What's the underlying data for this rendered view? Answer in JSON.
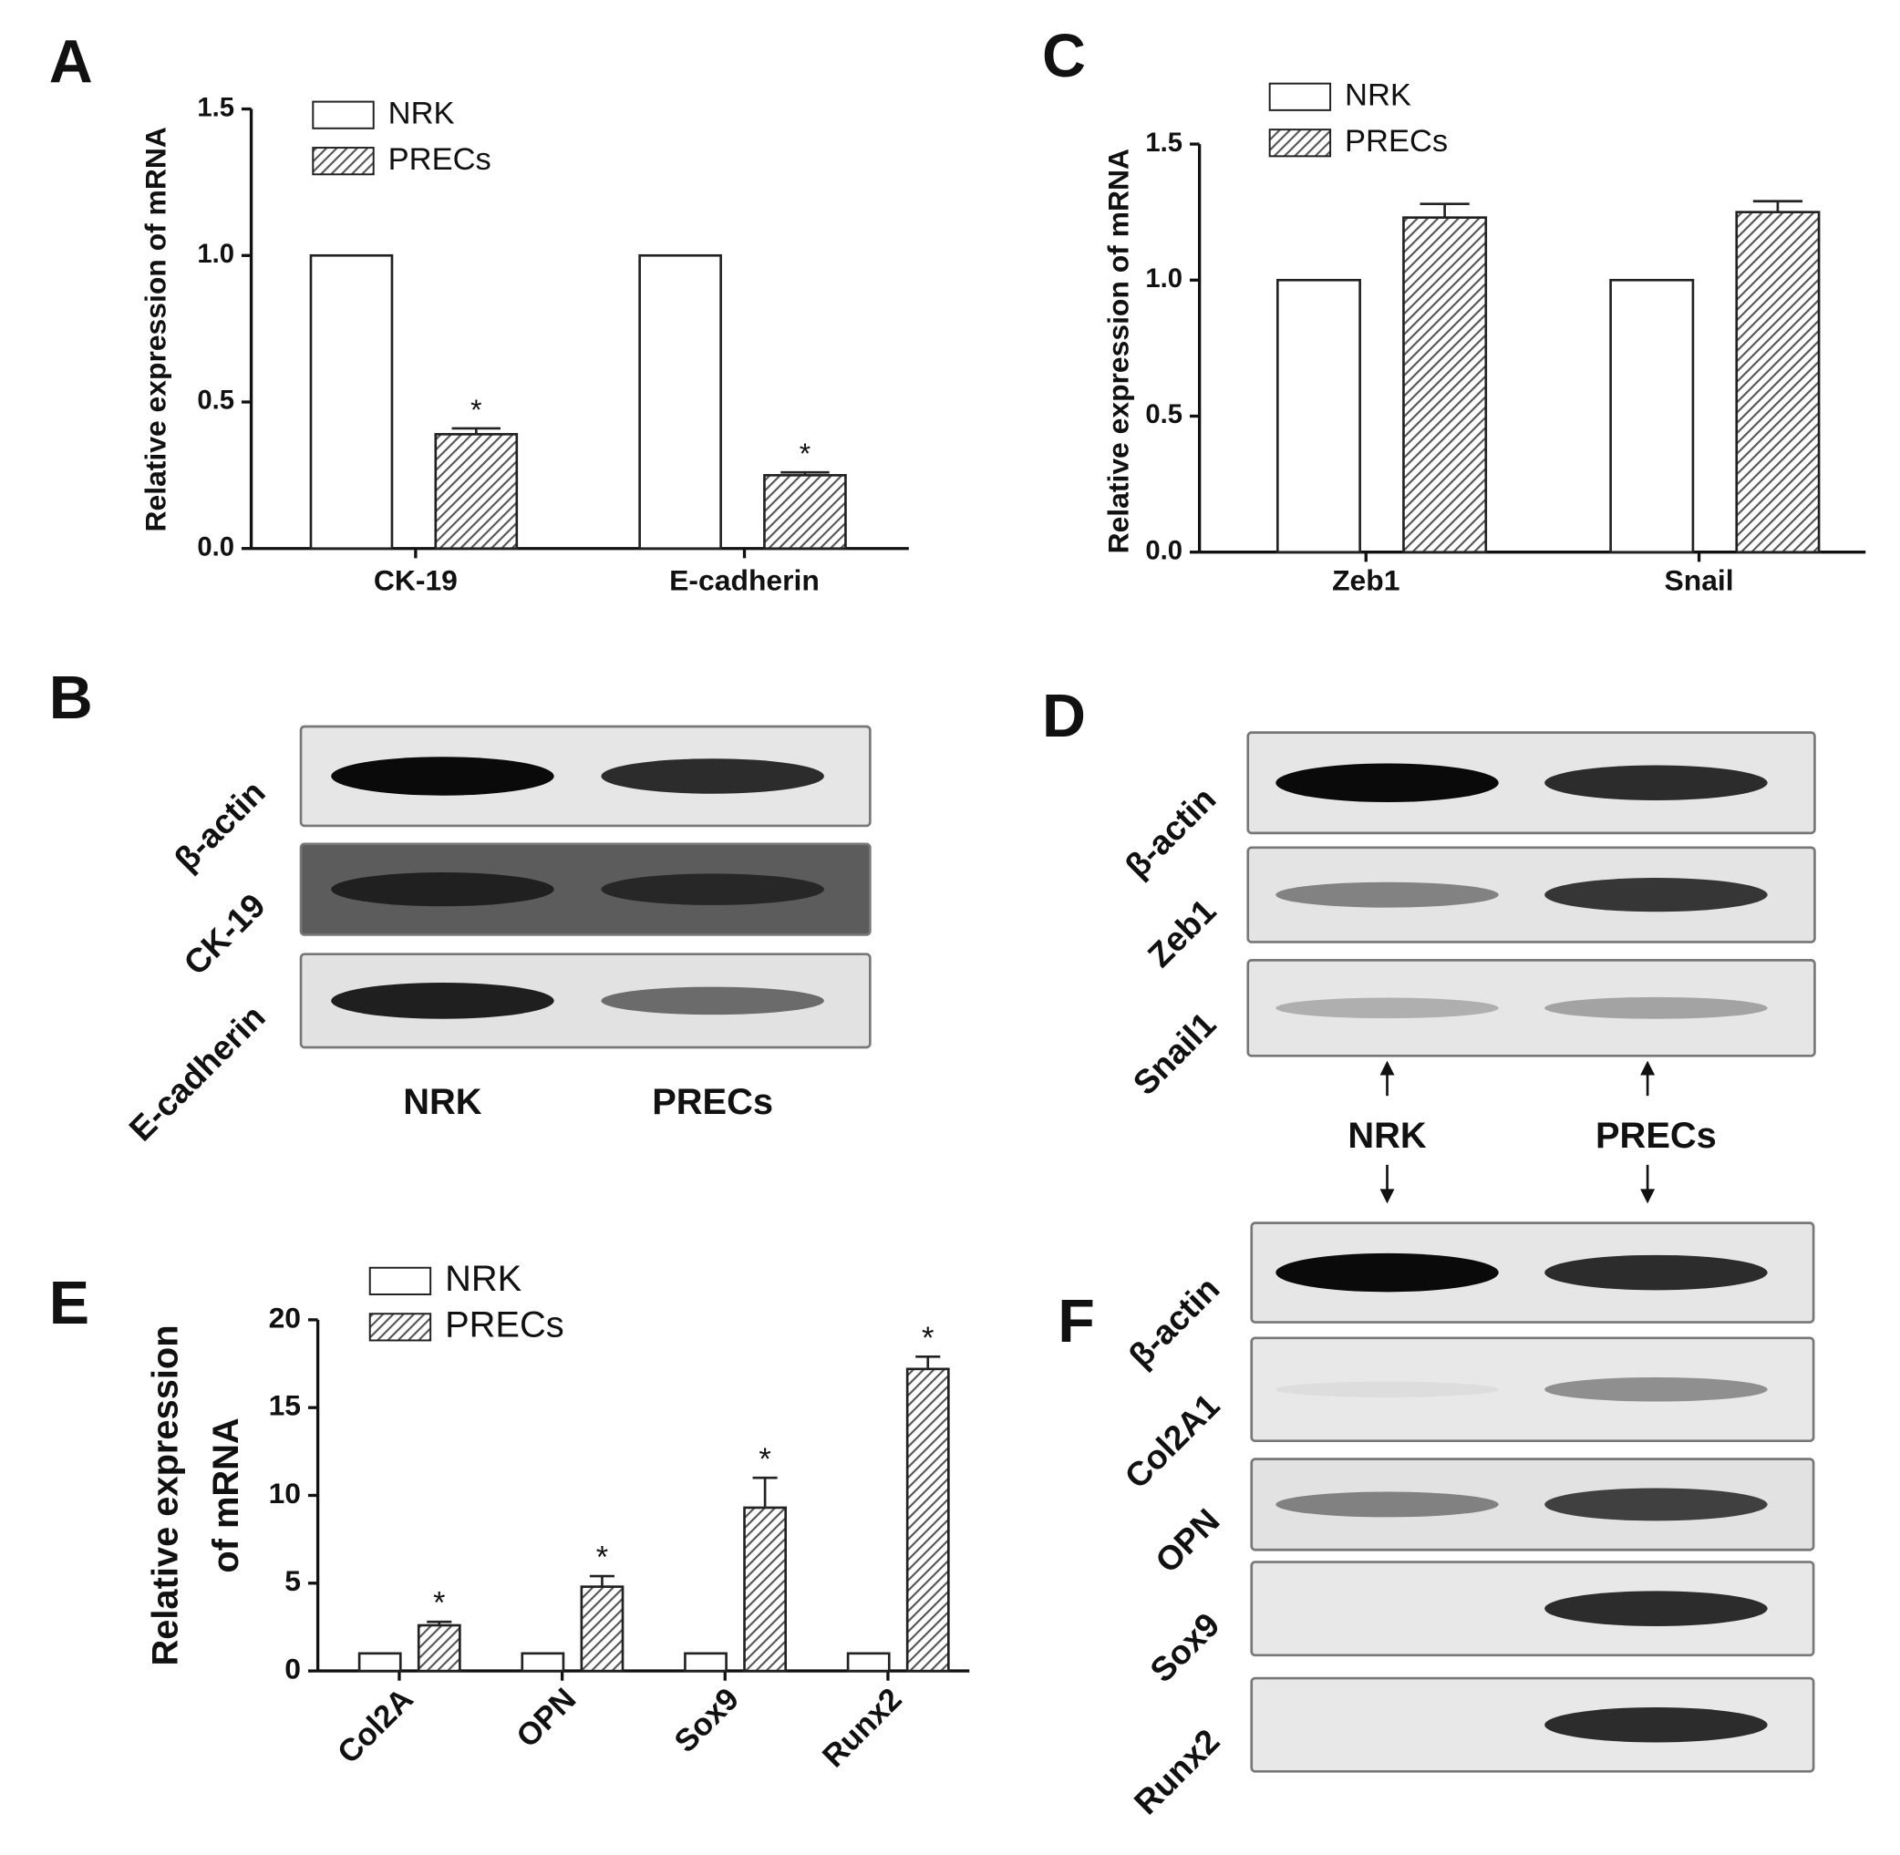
{
  "chart_data": [
    {
      "type": "bar",
      "panel": "A",
      "ylabel": [
        "Relative expression of mRNA"
      ],
      "categories": [
        "CK-19",
        "E-cadherin"
      ],
      "series": [
        {
          "name": "NRK",
          "color": "#ffffff",
          "values": [
            1,
            1
          ]
        },
        {
          "name": "PRECs",
          "color": "#555555",
          "values": [
            0.39,
            0.25
          ],
          "errors": [
            0.02,
            0.01
          ],
          "significance": [
            "*",
            "*"
          ]
        }
      ],
      "ylim": [
        0,
        1.5
      ],
      "yticks": [
        {
          "value": 0,
          "label": "0.0"
        },
        {
          "value": 0.5,
          "label": "0.5"
        },
        {
          "value": 1,
          "label": "1.0"
        },
        {
          "value": 1.5,
          "label": "1.5"
        }
      ],
      "grid": false
    },
    {
      "type": "bar",
      "panel": "C",
      "ylabel": [
        "Relative expression of mRNA"
      ],
      "categories": [
        "Zeb1",
        "Snail"
      ],
      "series": [
        {
          "name": "NRK",
          "color": "#ffffff",
          "values": [
            1,
            1
          ]
        },
        {
          "name": "PRECs",
          "color": "#555555",
          "values": [
            1.23,
            1.25
          ],
          "errors": [
            0.05,
            0.04
          ]
        }
      ],
      "ylim": [
        0,
        1.5
      ],
      "yticks": [
        {
          "value": 0,
          "label": "0.0"
        },
        {
          "value": 0.5,
          "label": "0.5"
        },
        {
          "value": 1,
          "label": "1.0"
        },
        {
          "value": 1.5,
          "label": "1.5"
        }
      ],
      "grid": false
    },
    {
      "type": "bar",
      "panel": "E",
      "ylabel": [
        "Relative expression",
        "of mRNA"
      ],
      "categories": [
        "Col2A",
        "OPN",
        "Sox9",
        "Runx2"
      ],
      "series": [
        {
          "name": "NRK",
          "color": "#ffffff",
          "values": [
            1,
            1,
            1,
            1
          ]
        },
        {
          "name": "PRECs",
          "color": "#555555",
          "values": [
            2.6,
            4.8,
            9.3,
            17.2
          ],
          "errors": [
            0.2,
            0.6,
            1.7,
            0.7
          ],
          "significance": [
            "*",
            "*",
            "*",
            "*"
          ]
        }
      ],
      "ylim": [
        0,
        20
      ],
      "yticks": [
        0,
        5,
        10,
        15,
        20
      ],
      "grid": false
    }
  ],
  "blots": [
    {
      "panel": "B",
      "rows": [
        "β-actin",
        "CK-19",
        "E-cadherin"
      ],
      "lanes": [
        "NRK",
        "PRECs"
      ]
    },
    {
      "panel": "D",
      "rows": [
        "β-actin",
        "Zeb1",
        "Snail1"
      ],
      "lanes": [
        "NRK",
        "PRECs"
      ]
    },
    {
      "panel": "F",
      "rows": [
        "β-actin",
        "Col2A1",
        "OPN",
        "Sox9",
        "Runx2"
      ]
    }
  ]
}
